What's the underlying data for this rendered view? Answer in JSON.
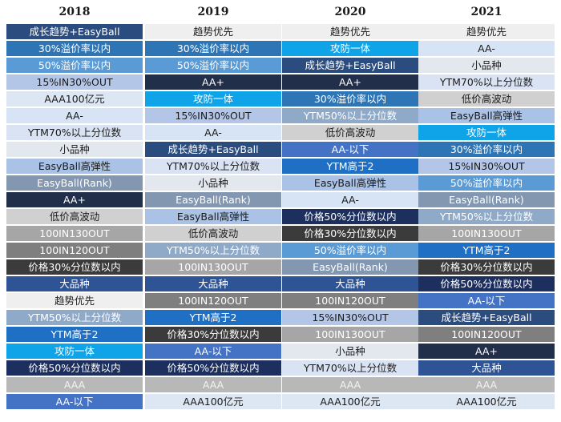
{
  "chart_data": {
    "type": "table",
    "columns": [
      "2018",
      "2019",
      "2020",
      "2021"
    ],
    "rows": [
      [
        "成长趋势+EasyBall",
        "趋势优先",
        "趋势优先",
        "趋势优先"
      ],
      [
        "30%溢价率以内",
        "30%溢价率以内",
        "攻防一体",
        "AA-"
      ],
      [
        "50%溢价率以内",
        "50%溢价率以内",
        "成长趋势+EasyBall",
        "小品种"
      ],
      [
        "15%IN30%OUT",
        "AA+",
        "AA+",
        "YTM70%以上分位数"
      ],
      [
        "AAA100亿元",
        "攻防一体",
        "30%溢价率以内",
        "低价高波动"
      ],
      [
        "AA-",
        "15%IN30%OUT",
        "YTM50%以上分位数",
        "EasyBall高弹性"
      ],
      [
        "YTM70%以上分位数",
        "AA-",
        "低价高波动",
        "攻防一体"
      ],
      [
        "小品种",
        "成长趋势+EasyBall",
        "AA-以下",
        "30%溢价率以内"
      ],
      [
        "EasyBall高弹性",
        "YTM70%以上分位数",
        "YTM高于2",
        "15%IN30%OUT"
      ],
      [
        "EasyBall(Rank)",
        "小品种",
        "EasyBall高弹性",
        "50%溢价率以内"
      ],
      [
        "AA+",
        "EasyBall(Rank)",
        "AA-",
        "EasyBall(Rank)"
      ],
      [
        "低价高波动",
        "EasyBall高弹性",
        "价格50%分位数以内",
        "YTM50%以上分位数"
      ],
      [
        "100IN130OUT",
        "低价高波动",
        "价格30%分位数以内",
        "100IN130OUT"
      ],
      [
        "100IN120OUT",
        "YTM50%以上分位数",
        "50%溢价率以内",
        "YTM高于2"
      ],
      [
        "价格30%分位数以内",
        "100IN130OUT",
        "EasyBall(Rank)",
        "价格30%分位数以内"
      ],
      [
        "大品种",
        "大品种",
        "大品种",
        "价格50%分位数以内"
      ],
      [
        "趋势优先",
        "100IN120OUT",
        "100IN120OUT",
        "AA-以下"
      ],
      [
        "YTM50%以上分位数",
        "YTM高于2",
        "15%IN30%OUT",
        "成长趋势+EasyBall"
      ],
      [
        "YTM高于2",
        "价格30%分位数以内",
        "100IN130OUT",
        "100IN120OUT"
      ],
      [
        "攻防一体",
        "AA-以下",
        "小品种",
        "AA+"
      ],
      [
        "价格50%分位数以内",
        "价格50%分位数以内",
        "YTM70%以上分位数",
        "大品种"
      ],
      [
        "AAA",
        "AAA",
        "AAA",
        "AAA"
      ],
      [
        "AA-以下",
        "AAA100亿元",
        "AAA100亿元",
        "AAA100亿元"
      ]
    ],
    "strategy_styles": {
      "成长趋势+EasyBall": {
        "bg": "#2b4c7e",
        "fg": "#ffffff"
      },
      "30%溢价率以内": {
        "bg": "#2e75b6",
        "fg": "#ffffff"
      },
      "50%溢价率以内": {
        "bg": "#5b9bd5",
        "fg": "#ffffff"
      },
      "15%IN30%OUT": {
        "bg": "#b4c6e7",
        "fg": "#1a1a1a"
      },
      "AAA100亿元": {
        "bg": "#dde6f3",
        "fg": "#1a1a1a"
      },
      "AA-": {
        "bg": "#d6e4f5",
        "fg": "#1a1a1a"
      },
      "YTM70%以上分位数": {
        "bg": "#dae3f3",
        "fg": "#1a1a1a"
      },
      "小品种": {
        "bg": "#e3e8ef",
        "fg": "#1a1a1a"
      },
      "EasyBall高弹性": {
        "bg": "#a9c2e6",
        "fg": "#1a1a1a"
      },
      "EasyBall(Rank)": {
        "bg": "#8497b0",
        "fg": "#ffffff"
      },
      "AA+": {
        "bg": "#222f4a",
        "fg": "#ffffff"
      },
      "低价高波动": {
        "bg": "#d0d0d0",
        "fg": "#1a1a1a"
      },
      "100IN130OUT": {
        "bg": "#a6a6a6",
        "fg": "#ffffff"
      },
      "100IN120OUT": {
        "bg": "#7f7f7f",
        "fg": "#ffffff"
      },
      "价格30%分位数以内": {
        "bg": "#3b3b3b",
        "fg": "#ffffff"
      },
      "大品种": {
        "bg": "#2f5496",
        "fg": "#ffffff"
      },
      "趋势优先": {
        "bg": "#efefef",
        "fg": "#1a1a1a"
      },
      "YTM50%以上分位数": {
        "bg": "#8fa9c8",
        "fg": "#ffffff"
      },
      "YTM高于2": {
        "bg": "#1f6fc5",
        "fg": "#ffffff"
      },
      "攻防一体": {
        "bg": "#0fa3e8",
        "fg": "#ffffff"
      },
      "价格50%分位数以内": {
        "bg": "#1c2f5e",
        "fg": "#ffffff"
      },
      "AAA": {
        "bg": "#b8b8b8",
        "fg": "#f2f2f2"
      },
      "AA-以下": {
        "bg": "#4472c4",
        "fg": "#ffffff"
      }
    }
  }
}
